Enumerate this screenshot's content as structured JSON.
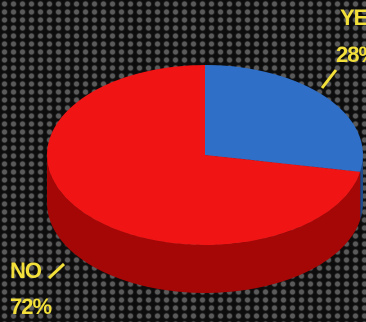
{
  "chart_data": {
    "type": "pie",
    "style": "3d",
    "slices": [
      {
        "label": "YES",
        "value": 28,
        "display": "28%",
        "color": "#2f6fc8",
        "side_color": "#1c4a8a"
      },
      {
        "label": "NO",
        "value": 72,
        "display": "72%",
        "color": "#f01414",
        "side_color": "#a50606"
      }
    ],
    "label_color": "#f3e03a"
  }
}
